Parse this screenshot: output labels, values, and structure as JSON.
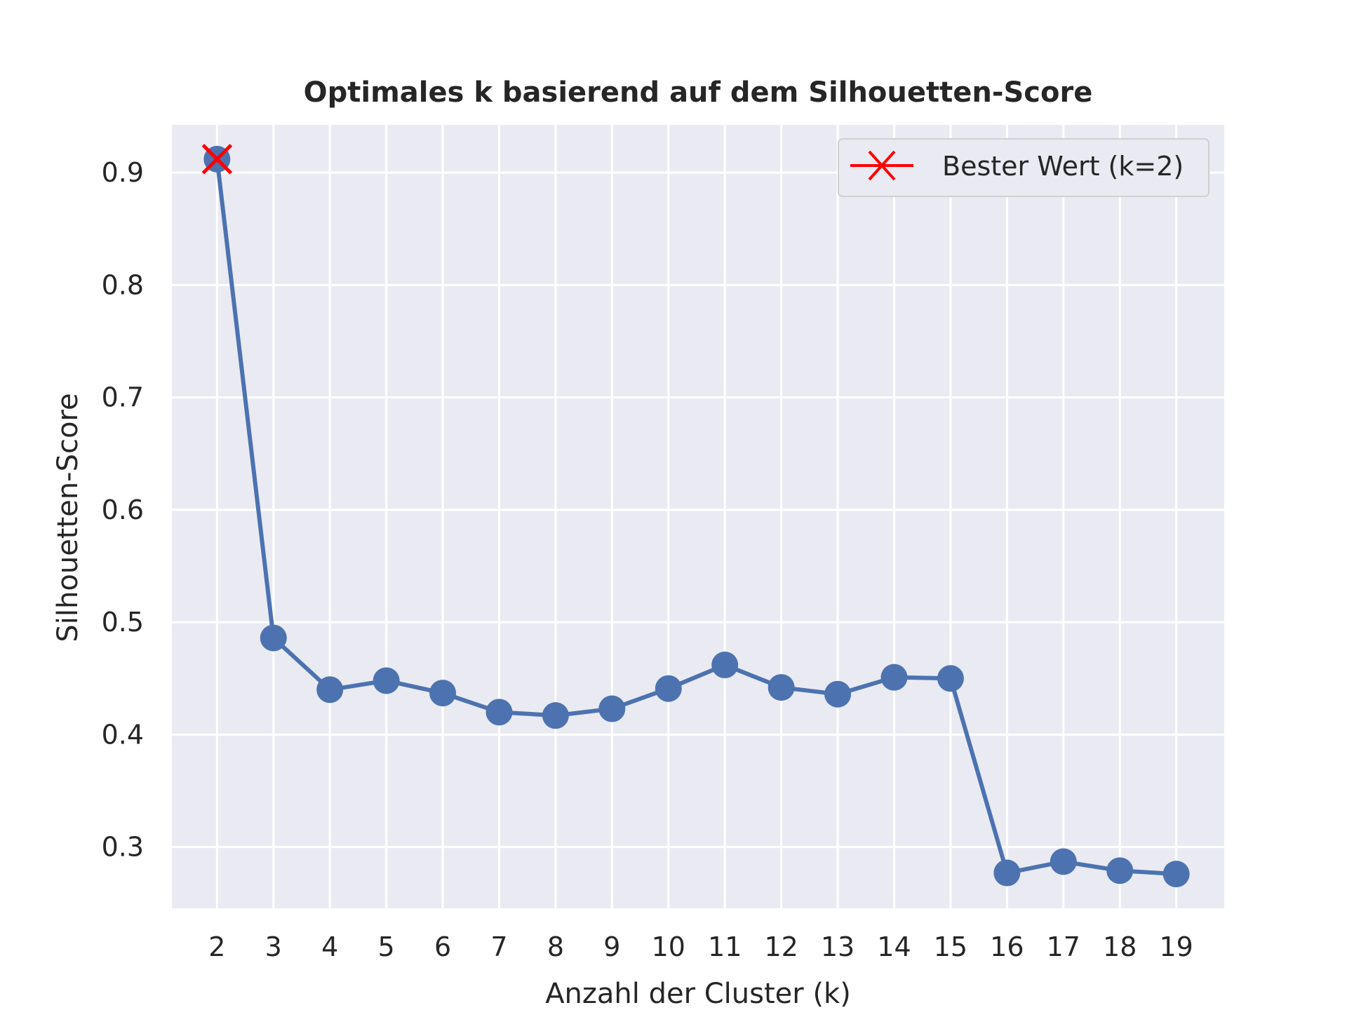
{
  "chart_data": {
    "type": "line",
    "title": "Optimales k basierend auf dem Silhouetten-Score",
    "xlabel": "Anzahl der Cluster (k)",
    "ylabel": "Silhouetten-Score",
    "x": [
      2,
      3,
      4,
      5,
      6,
      7,
      8,
      9,
      10,
      11,
      12,
      13,
      14,
      15,
      16,
      17,
      18,
      19
    ],
    "series": [
      {
        "values": [
          0.912,
          0.486,
          0.44,
          0.448,
          0.437,
          0.42,
          0.417,
          0.423,
          0.441,
          0.462,
          0.442,
          0.436,
          0.451,
          0.45,
          0.277,
          0.287,
          0.279,
          0.276
        ],
        "color": "#4c72b0",
        "marker": "circle"
      }
    ],
    "best_point": {
      "x": 2,
      "y": 0.912,
      "label": "Bester Wert (k=2)",
      "color": "#ff0000",
      "marker": "x"
    },
    "xticks": [
      "2",
      "3",
      "4",
      "5",
      "6",
      "7",
      "8",
      "9",
      "10",
      "11",
      "12",
      "13",
      "14",
      "15",
      "16",
      "17",
      "18",
      "19"
    ],
    "yticks": [
      "0.3",
      "0.4",
      "0.5",
      "0.6",
      "0.7",
      "0.8",
      "0.9"
    ],
    "ytick_values": [
      0.3,
      0.4,
      0.5,
      0.6,
      0.7,
      0.8,
      0.9
    ],
    "xlim": [
      1.2,
      19.85
    ],
    "ylim": [
      0.2455,
      0.9425
    ],
    "grid": true,
    "legend_position": "top-right",
    "background_color": "#eaeaf2",
    "grid_color": "#ffffff"
  }
}
